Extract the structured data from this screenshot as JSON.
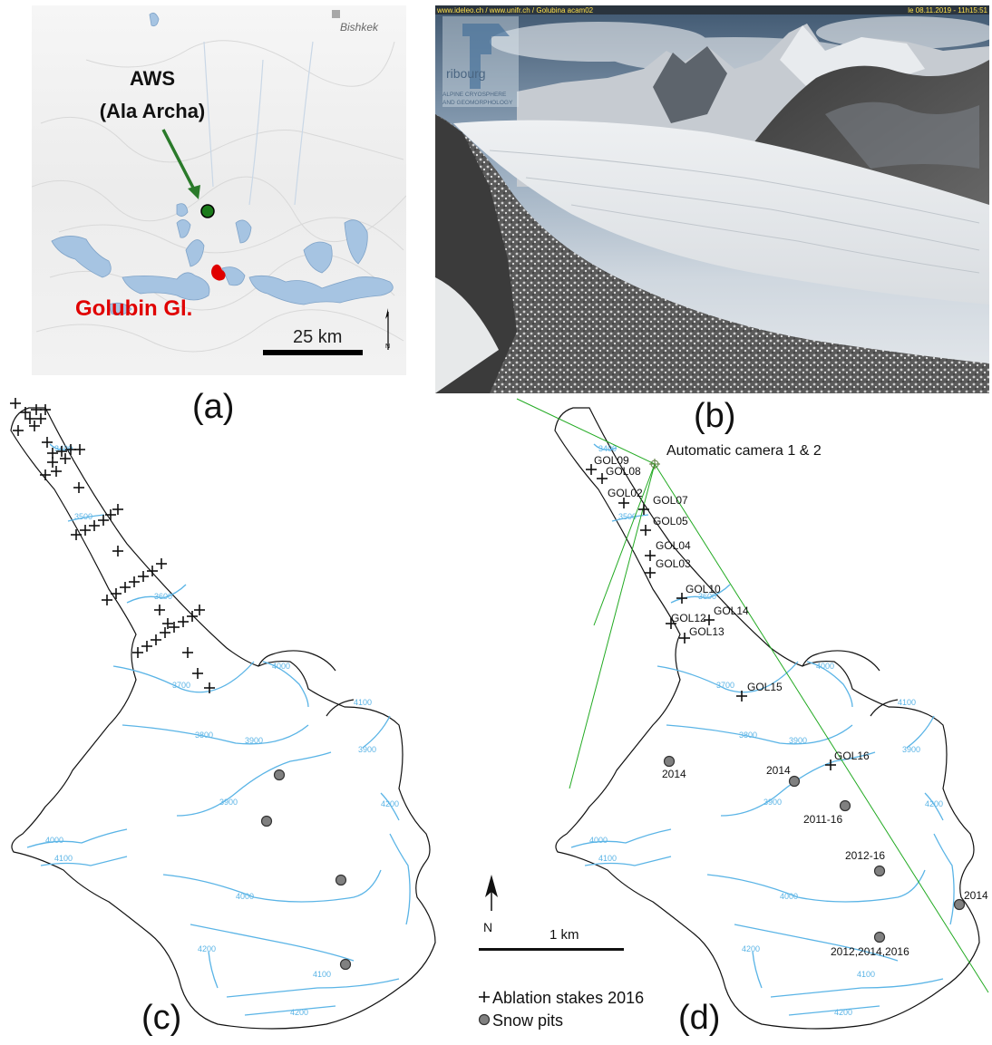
{
  "panel_a": {
    "city": "Bishkek",
    "aws_line1": "AWS",
    "aws_line2": "(Ala Archa)",
    "glacier": "Golubin Gl.",
    "scale": "25 km",
    "north": "N",
    "caption": "(a)",
    "colors": {
      "glacier_fill": "#a6c4e2",
      "aws_marker": "#1a7a1a",
      "arrow": "#2a7a2a",
      "glacier_text": "#e00000"
    }
  },
  "panel_b": {
    "header_left": "www.ideleo.ch / www.unifr.ch / Golubina acam02",
    "header_right": "le 08.11.2019 - 11h15:51",
    "logo_line1": "ribourg",
    "logo_line2": "ALPINE CRYOSPHERE",
    "logo_line3": "AND GEOMORPHOLOGY",
    "caption": "(b)"
  },
  "panel_c": {
    "caption": "(c)",
    "contours": [
      "3400",
      "3500",
      "3600",
      "3700",
      "3800",
      "3900",
      "3900",
      "4000",
      "4000",
      "4100",
      "4100",
      "4200",
      "4200",
      "4000",
      "4100",
      "4200",
      "3900"
    ]
  },
  "panel_d": {
    "camera_label": "Automatic camera 1 & 2",
    "stakes": [
      "GOL09",
      "GOL08",
      "GOL02",
      "GOL07",
      "GOL05",
      "GOL04",
      "GOL03",
      "GOL10",
      "GOL14",
      "GOL12",
      "GOL13",
      "GOL15",
      "GOL16"
    ],
    "pits": [
      "2014",
      "2014",
      "2011-16",
      "2012-16",
      "2014",
      "2012,2014,2016"
    ],
    "caption": "(d)",
    "contours": [
      "3400",
      "3500",
      "3600",
      "3700",
      "3800",
      "3900",
      "3900",
      "4000",
      "4000",
      "4100",
      "4100",
      "4200",
      "4200",
      "4000",
      "4100",
      "4200",
      "3900"
    ]
  },
  "legend": {
    "scale_label": "1 km",
    "north": "N",
    "stakes_label": "Ablation stakes 2016",
    "pits_label": "Snow pits",
    "colors": {
      "camera_lines": "#22aa22",
      "contours": "#5ab4e6"
    }
  }
}
